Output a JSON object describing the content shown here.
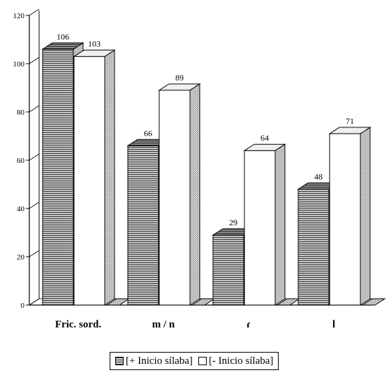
{
  "chart_data": {
    "type": "bar",
    "categories": [
      "Fric. sord.",
      "m / n",
      "ɾ",
      "l"
    ],
    "series": [
      {
        "name": "[+ Inicio sílaba]",
        "values": [
          106,
          66,
          29,
          48
        ]
      },
      {
        "name": "[- Inicio sílaba]",
        "values": [
          103,
          89,
          64,
          71
        ]
      }
    ],
    "ylim": [
      0,
      120
    ],
    "yticks": [
      "0",
      "20",
      "40",
      "60",
      "80",
      "100",
      "120"
    ],
    "data_labels": true,
    "legend_position": "bottom",
    "grid": false,
    "title": "",
    "xlabel": "",
    "ylabel": ""
  },
  "legend": {
    "items": [
      {
        "label": "[+ Inicio sílaba]",
        "icon": "dark-hatched-square-icon"
      },
      {
        "label": "[- Inicio sílaba]",
        "icon": "white-square-icon"
      }
    ]
  },
  "colors": {
    "series_1_fill": "#bdbdbd",
    "series_1_stripe": "#3a3a3a",
    "series_2_fill": "#ffffff",
    "side_fill": "#c8c8c8",
    "outline": "#000000"
  }
}
